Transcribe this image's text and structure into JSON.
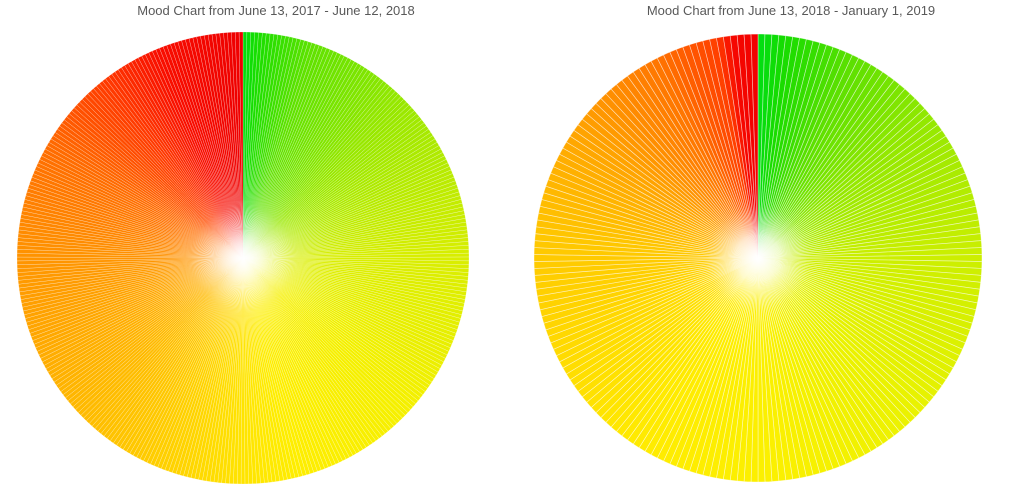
{
  "page": {
    "background_color": "#ffffff"
  },
  "chart_data": [
    {
      "type": "pie",
      "title": "Mood Chart from June 13, 2017 - June 12, 2018",
      "legend_position": "none",
      "grid": false,
      "num_slices": 365,
      "start_angle_deg": 0,
      "direction": "clockwise",
      "slice_border": {
        "color": "#ffffff",
        "width": 0.45,
        "opacity": 0.5
      },
      "center_fade": {
        "color": "#ffffff",
        "radius_fraction": 0.23,
        "max_opacity": 0.9
      },
      "color_stops": [
        {
          "angle": 0,
          "color": "#00DD0E"
        },
        {
          "angle": 4,
          "color": "#1ADE00"
        },
        {
          "angle": 18,
          "color": "#5FE200"
        },
        {
          "angle": 45,
          "color": "#97E800"
        },
        {
          "angle": 90,
          "color": "#D9EE00"
        },
        {
          "angle": 130,
          "color": "#F4F000"
        },
        {
          "angle": 165,
          "color": "#FEEE00"
        },
        {
          "angle": 180,
          "color": "#FFE400"
        },
        {
          "angle": 210,
          "color": "#FFC800"
        },
        {
          "angle": 245,
          "color": "#FFAB00"
        },
        {
          "angle": 270,
          "color": "#FF9400"
        },
        {
          "angle": 300,
          "color": "#FF6B00"
        },
        {
          "angle": 322,
          "color": "#FF3A00"
        },
        {
          "angle": 338,
          "color": "#F80D00"
        },
        {
          "angle": 360,
          "color": "#EE0000"
        }
      ]
    },
    {
      "type": "pie",
      "title": "Mood Chart from June 13, 2018 - January 1, 2019",
      "legend_position": "none",
      "grid": false,
      "num_slices": 202,
      "start_angle_deg": 0,
      "direction": "clockwise",
      "slice_border": {
        "color": "#ffffff",
        "width": 0.7,
        "opacity": 0.55
      },
      "center_fade": {
        "color": "#ffffff",
        "radius_fraction": 0.23,
        "max_opacity": 0.9
      },
      "color_stops": [
        {
          "angle": 0,
          "color": "#00DE14"
        },
        {
          "angle": 7,
          "color": "#16DC00"
        },
        {
          "angle": 25,
          "color": "#5BE000"
        },
        {
          "angle": 50,
          "color": "#92E800"
        },
        {
          "angle": 90,
          "color": "#CCEF00"
        },
        {
          "angle": 135,
          "color": "#EAF200"
        },
        {
          "angle": 175,
          "color": "#FBF000"
        },
        {
          "angle": 210,
          "color": "#FFEC00"
        },
        {
          "angle": 245,
          "color": "#FFDA00"
        },
        {
          "angle": 275,
          "color": "#FFC700"
        },
        {
          "angle": 305,
          "color": "#FFA400"
        },
        {
          "angle": 332,
          "color": "#FF7700"
        },
        {
          "angle": 349,
          "color": "#FF3F00"
        },
        {
          "angle": 353,
          "color": "#F70800"
        },
        {
          "angle": 360,
          "color": "#F00000"
        }
      ]
    }
  ],
  "title_color": "#595959"
}
